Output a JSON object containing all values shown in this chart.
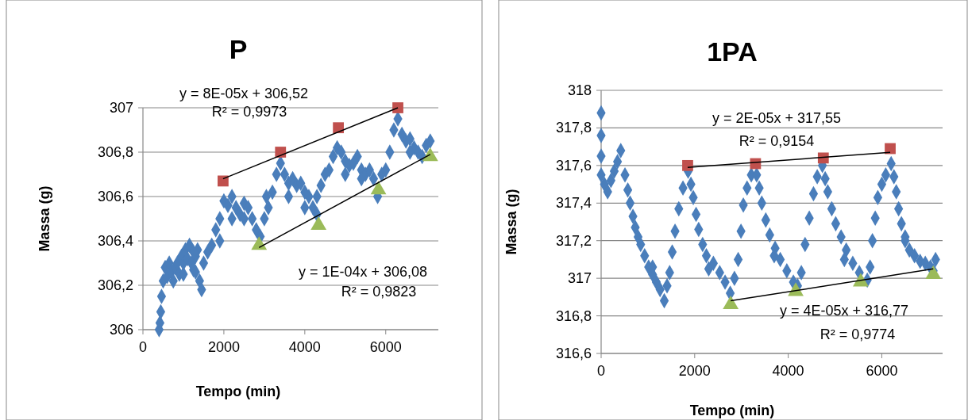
{
  "chart_data": [
    {
      "type": "scatter",
      "title": "P",
      "xlabel": "Tempo (min)",
      "ylabel": "Massa (g)",
      "xlim": [
        0,
        7300
      ],
      "xticks": [
        0,
        2000,
        4000,
        6000
      ],
      "ylim": [
        306,
        307
      ],
      "yticks": [
        {
          "value": 306,
          "label": "306"
        },
        {
          "value": 306.2,
          "label": "306,2"
        },
        {
          "value": 306.4,
          "label": "306,4"
        },
        {
          "value": 306.6,
          "label": "306,6"
        },
        {
          "value": 306.8,
          "label": "306,8"
        },
        {
          "value": 307,
          "label": "307"
        }
      ],
      "grid": "y",
      "series": [
        {
          "marker": "diamond",
          "color": "#4a7ebb",
          "x": [
            400,
            420,
            440,
            460,
            500,
            550,
            600,
            650,
            700,
            750,
            800,
            850,
            900,
            950,
            1000,
            1050,
            1100,
            1150,
            1200,
            1250,
            1300,
            1350,
            1400,
            1450,
            1500,
            1600,
            1700,
            1800,
            1900,
            2000,
            2100,
            2200,
            2300,
            2400,
            2500,
            2600,
            2700,
            2800,
            2900,
            3000,
            3100,
            3200,
            3300,
            3400,
            3500,
            3600,
            3700,
            3800,
            3900,
            4000,
            4100,
            4200,
            4300,
            4400,
            4500,
            4600,
            4700,
            4800,
            4900,
            5000,
            5100,
            5200,
            5300,
            5400,
            5500,
            5600,
            5700,
            5800,
            5900,
            6000,
            6100,
            6200,
            6300,
            6400,
            6500,
            6600,
            6700,
            6800,
            6900,
            7000,
            7100,
            1000,
            1300,
            2200,
            2500,
            3600,
            4000,
            5000,
            5400,
            6600,
            1250,
            1900,
            3050,
            4300
          ],
          "values": [
            306.0,
            306.03,
            306.08,
            306.15,
            306.22,
            306.28,
            306.24,
            306.3,
            306.26,
            306.22,
            306.28,
            306.3,
            306.25,
            306.33,
            306.3,
            306.36,
            306.32,
            306.38,
            306.3,
            306.27,
            306.33,
            306.36,
            306.22,
            306.18,
            306.3,
            306.35,
            306.38,
            306.45,
            306.5,
            306.58,
            306.56,
            306.6,
            306.55,
            306.52,
            306.57,
            306.55,
            306.5,
            306.45,
            306.42,
            306.5,
            306.55,
            306.62,
            306.7,
            306.75,
            306.7,
            306.66,
            306.68,
            306.65,
            306.66,
            306.62,
            306.6,
            306.55,
            306.6,
            306.65,
            306.7,
            306.72,
            306.78,
            306.82,
            306.8,
            306.76,
            306.74,
            306.75,
            306.78,
            306.72,
            306.7,
            306.72,
            306.68,
            306.6,
            306.7,
            306.72,
            306.8,
            306.9,
            306.95,
            306.88,
            306.85,
            306.86,
            306.82,
            306.8,
            306.78,
            306.83,
            306.85,
            306.25,
            306.26,
            306.5,
            306.5,
            306.6,
            306.55,
            306.7,
            306.68,
            306.8,
            306.35,
            306.4,
            306.6,
            306.52
          ]
        },
        {
          "marker": "square",
          "color": "#c0504d",
          "x": [
            1980,
            3400,
            4830,
            6300
          ],
          "values": [
            306.67,
            306.8,
            306.91,
            307.0
          ]
        },
        {
          "marker": "triangle",
          "color": "#9bbb59",
          "x": [
            2870,
            4340,
            5820,
            7100
          ],
          "values": [
            306.38,
            306.47,
            306.63,
            306.78
          ]
        },
        {
          "type": "line",
          "color": "#000000",
          "x": [
            1980,
            6300
          ],
          "values": [
            306.68,
            307.0
          ]
        },
        {
          "type": "line",
          "color": "#000000",
          "x": [
            2870,
            7100
          ],
          "values": [
            306.37,
            306.79
          ]
        }
      ],
      "annotations": [
        "y = 8E-05x + 306,52",
        "R² = 0,9973",
        "y = 1E-04x + 306,08",
        "R² = 0,9823"
      ]
    },
    {
      "type": "scatter",
      "title": "1PA",
      "xlabel": "Tempo (min)",
      "ylabel": "Massa (g)",
      "xlim": [
        0,
        7300
      ],
      "xticks": [
        0,
        2000,
        4000,
        6000
      ],
      "ylim": [
        316.6,
        318
      ],
      "yticks": [
        {
          "value": 316.6,
          "label": "316,6"
        },
        {
          "value": 316.8,
          "label": "316,8"
        },
        {
          "value": 317,
          "label": "317"
        },
        {
          "value": 317.2,
          "label": "317,2"
        },
        {
          "value": 317.4,
          "label": "317,4"
        },
        {
          "value": 317.6,
          "label": "317,6"
        },
        {
          "value": 317.8,
          "label": "317,8"
        },
        {
          "value": 318,
          "label": "318"
        }
      ],
      "grid": "y",
      "series": [
        {
          "marker": "diamond",
          "color": "#4a7ebb",
          "x": [
            0,
            0,
            0,
            0,
            70,
            140,
            210,
            280,
            350,
            420,
            510,
            570,
            620,
            680,
            730,
            790,
            845,
            930,
            1015,
            1100,
            1180,
            1260,
            1350,
            1410,
            1465,
            1520,
            1580,
            1660,
            1750,
            1860,
            1920,
            1970,
            2030,
            2085,
            2170,
            2250,
            2400,
            2535,
            2650,
            2760,
            2850,
            2930,
            2990,
            3040,
            3120,
            3210,
            3325,
            3380,
            3435,
            3520,
            3605,
            3720,
            3830,
            3970,
            4110,
            4200,
            4280,
            4360,
            4450,
            4540,
            4620,
            4730,
            4790,
            4845,
            4930,
            5015,
            5130,
            5240,
            5380,
            5520,
            5690,
            5750,
            5800,
            5860,
            5915,
            6000,
            6085,
            6200,
            6260,
            6310,
            6360,
            6420,
            6500,
            6590,
            6700,
            6820,
            6930,
            7040,
            7150,
            7100,
            1100,
            2300,
            3700,
            5200,
            6500
          ],
          "values": [
            317.88,
            317.76,
            317.65,
            317.55,
            317.5,
            317.46,
            317.52,
            317.57,
            317.62,
            317.68,
            317.55,
            317.47,
            317.4,
            317.33,
            317.27,
            317.22,
            317.18,
            317.12,
            317.06,
            317.02,
            316.98,
            316.94,
            316.88,
            316.96,
            317.03,
            317.14,
            317.25,
            317.37,
            317.48,
            317.57,
            317.5,
            317.43,
            317.34,
            317.26,
            317.18,
            317.12,
            317.08,
            317.03,
            316.98,
            316.92,
            317.0,
            317.1,
            317.25,
            317.39,
            317.48,
            317.55,
            317.55,
            317.48,
            317.4,
            317.31,
            317.23,
            317.16,
            317.1,
            317.04,
            316.98,
            316.96,
            317.03,
            317.18,
            317.32,
            317.45,
            317.54,
            317.6,
            317.53,
            317.46,
            317.37,
            317.29,
            317.22,
            317.15,
            317.08,
            317.03,
            316.99,
            317.06,
            317.2,
            317.32,
            317.43,
            317.5,
            317.55,
            317.61,
            317.54,
            317.46,
            317.37,
            317.29,
            317.22,
            317.15,
            317.12,
            317.09,
            317.08,
            317.06,
            317.1,
            317.04,
            317.06,
            317.05,
            317.12,
            317.1,
            317.2
          ]
        },
        {
          "marker": "square",
          "color": "#c0504d",
          "x": [
            1850,
            3300,
            4750,
            6180
          ],
          "values": [
            317.6,
            317.61,
            317.64,
            317.69
          ]
        },
        {
          "marker": "triangle",
          "color": "#9bbb59",
          "x": [
            2770,
            4160,
            5550,
            7100
          ],
          "values": [
            316.86,
            316.93,
            316.98,
            317.02
          ]
        },
        {
          "type": "line",
          "color": "#000000",
          "x": [
            1850,
            6180
          ],
          "values": [
            317.59,
            317.67
          ]
        },
        {
          "type": "line",
          "color": "#000000",
          "x": [
            2770,
            7100
          ],
          "values": [
            316.88,
            317.05
          ]
        }
      ],
      "annotations": [
        "y = 2E-05x + 317,55",
        "R² = 0,9154",
        "y = 4E-05x + 316,77",
        "R² = 0,9774"
      ]
    }
  ]
}
